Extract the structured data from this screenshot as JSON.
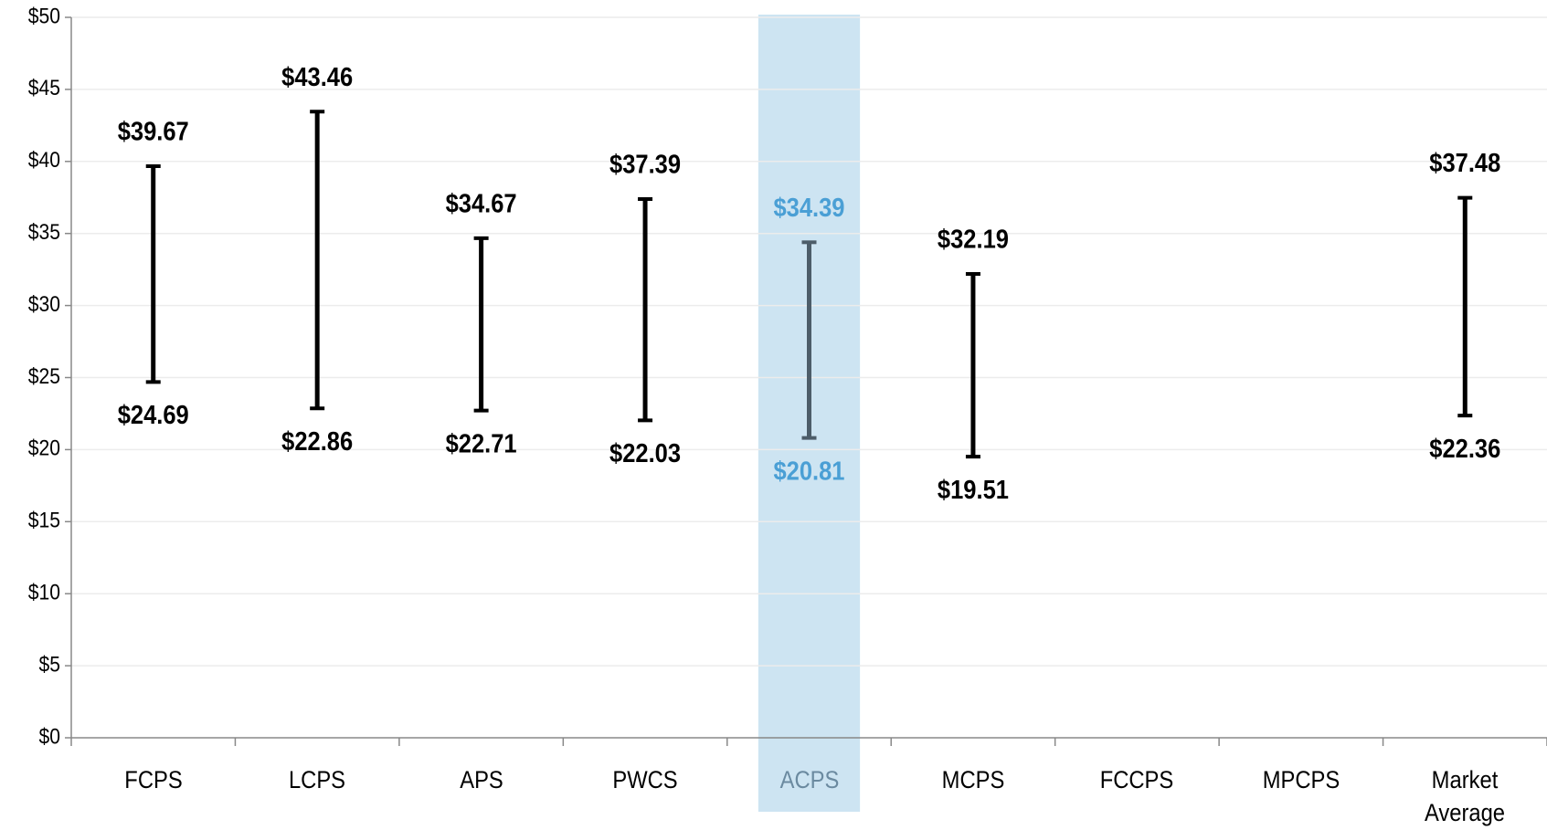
{
  "chart_data": {
    "type": "range",
    "categories": [
      "FCPS",
      "LCPS",
      "APS",
      "PWCS",
      "ACPS",
      "MCPS",
      "FCCPS",
      "MPCPS",
      "Market Average"
    ],
    "series": [
      {
        "name": "High",
        "color": "#000000",
        "values": [
          39.67,
          43.46,
          34.67,
          37.39,
          34.39,
          32.19,
          null,
          null,
          37.48
        ],
        "value_labels": [
          "$39.67",
          "$43.46",
          "$34.67",
          "$37.39",
          "$34.39",
          "$32.19",
          null,
          null,
          "$37.48"
        ]
      },
      {
        "name": "Low",
        "color": "#000000",
        "values": [
          24.69,
          22.86,
          22.71,
          22.03,
          20.81,
          19.51,
          null,
          null,
          22.36
        ],
        "value_labels": [
          "$24.69",
          "$22.86",
          "$22.71",
          "$22.03",
          "$20.81",
          "$19.51",
          null,
          null,
          "$22.36"
        ]
      }
    ],
    "highlight": "ACPS",
    "highlight_color": "#cde4f2",
    "highlight_mark_color": "#4d5d69",
    "highlight_label_color": "#4a9fd5",
    "ylim": [
      0,
      50
    ],
    "yticks": [
      {
        "value": 0,
        "label": "$0"
      },
      {
        "value": 5,
        "label": "$5"
      },
      {
        "value": 10,
        "label": "$10"
      },
      {
        "value": 15,
        "label": "$15"
      },
      {
        "value": 20,
        "label": "$20"
      },
      {
        "value": 25,
        "label": "$25"
      },
      {
        "value": 30,
        "label": "$30"
      },
      {
        "value": 35,
        "label": "$35"
      },
      {
        "value": 40,
        "label": "$40"
      },
      {
        "value": 45,
        "label": "$45"
      },
      {
        "value": 50,
        "label": "$50"
      }
    ],
    "grid": true
  }
}
